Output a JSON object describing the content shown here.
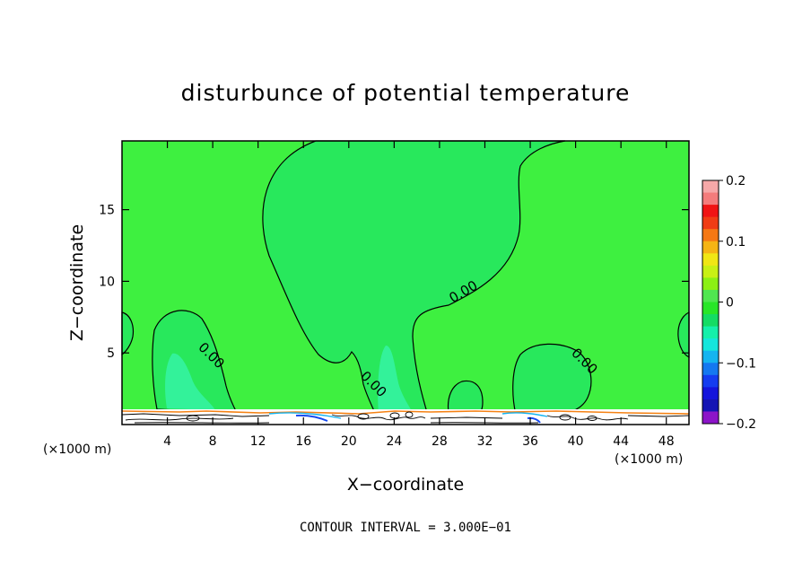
{
  "chart_data": {
    "type": "heatmap",
    "title": "disturbunce of potential temperature",
    "xlabel": "X−coordinate",
    "ylabel": "Z−coordinate",
    "x_unit": "(×1000 m)",
    "z_unit": "(×1000 m)",
    "xlim": [
      0,
      50
    ],
    "ylim": [
      0,
      19.8
    ],
    "x_ticks": [
      4,
      8,
      12,
      16,
      20,
      24,
      28,
      32,
      36,
      40,
      44,
      48
    ],
    "y_ticks": [
      5,
      10,
      15
    ],
    "contour_interval_text": "CONTOUR INTERVAL = 3.000E−01",
    "contour_labels": [
      {
        "text": "0.00",
        "x": 30.3,
        "z": 9.0
      },
      {
        "text": "0.00",
        "x": 7.6,
        "z": 4.6
      },
      {
        "text": "0.00",
        "x": 21.9,
        "z": 2.6
      },
      {
        "text": "0.00",
        "x": 40.5,
        "z": 4.2
      }
    ],
    "colorbar": {
      "range": [
        -0.2,
        0.2
      ],
      "tick_values": [
        0.2,
        0.1,
        0,
        -0.1,
        -0.2
      ],
      "tick_labels": [
        "0.2",
        "0.1",
        "0",
        "−0.1",
        "−0.2"
      ],
      "colors": [
        "#f6a8a8",
        "#f47c7c",
        "#f01414",
        "#f03c14",
        "#f57814",
        "#f5b414",
        "#f0e614",
        "#c8f014",
        "#8cf014",
        "#50e650",
        "#28e628",
        "#14dc64",
        "#14f0aa",
        "#14e6dc",
        "#14b4f0",
        "#1478f0",
        "#143cf0",
        "#1414dc",
        "#1414b4",
        "#8c14c8"
      ]
    },
    "field": {
      "background_value": 0,
      "background_color": "#3ef040",
      "zero_region_color": "#28e85c",
      "negative_patch_color": "#33f29a"
    }
  }
}
